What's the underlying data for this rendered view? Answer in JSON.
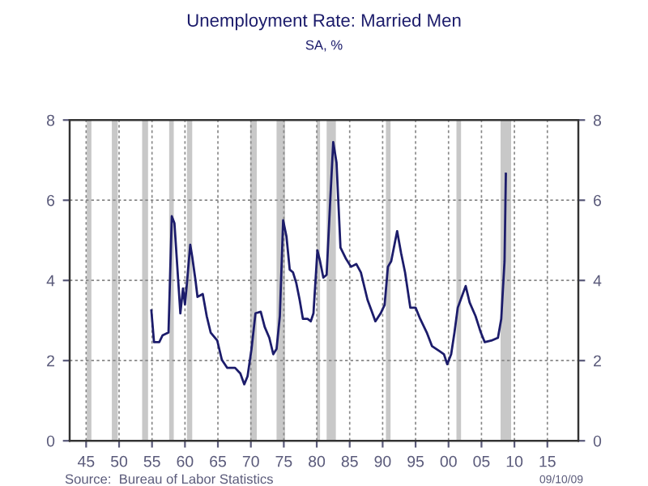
{
  "chart_data": {
    "type": "line",
    "title": "Unemployment Rate: Married Men",
    "subtitle": "SA, %",
    "annotations": [
      "Source:  Bureau of Labor Statistics",
      "09/10/09"
    ],
    "series": [
      {
        "color": "#1c1c6b",
        "x": [
          1954.9,
          1955.3,
          1956.1,
          1956.6,
          1957.5,
          1958.0,
          1958.4,
          1959.0,
          1959.3,
          1959.7,
          1960.0,
          1960.3,
          1960.8,
          1961.1,
          1961.6,
          1961.9,
          1962.7,
          1963.3,
          1963.9,
          1964.9,
          1965.6,
          1966.4,
          1967.6,
          1968.4,
          1969.0,
          1969.5,
          1970.1,
          1970.7,
          1971.5,
          1972.1,
          1972.8,
          1973.4,
          1973.9,
          1974.4,
          1974.9,
          1975.4,
          1975.9,
          1976.4,
          1976.9,
          1977.4,
          1977.9,
          1978.6,
          1979.1,
          1979.5,
          1980.1,
          1980.5,
          1981.0,
          1981.5,
          1982.0,
          1982.5,
          1983.0,
          1983.6,
          1984.4,
          1985.2,
          1986.0,
          1986.7,
          1987.7,
          1988.3,
          1988.9,
          1989.7,
          1990.3,
          1990.8,
          1991.3,
          1992.2,
          1992.8,
          1993.4,
          1994.2,
          1995.0,
          1995.7,
          1996.7,
          1997.5,
          1998.7,
          1999.3,
          1999.8,
          2000.4,
          2000.9,
          2001.4,
          2002.0,
          2002.6,
          2003.2,
          2004.1,
          2004.9,
          2005.5,
          2006.5,
          2007.5,
          2008.0,
          2008.5,
          2008.7
        ],
        "values": [
          3.25,
          2.46,
          2.46,
          2.63,
          2.7,
          5.6,
          5.43,
          3.93,
          3.18,
          3.8,
          3.4,
          3.93,
          4.89,
          4.59,
          4.0,
          3.59,
          3.66,
          3.11,
          2.7,
          2.5,
          2.02,
          1.82,
          1.82,
          1.68,
          1.41,
          1.61,
          2.29,
          3.18,
          3.22,
          2.84,
          2.57,
          2.16,
          2.29,
          3.11,
          5.5,
          5.1,
          4.27,
          4.2,
          3.93,
          3.52,
          3.04,
          3.04,
          2.98,
          3.18,
          4.75,
          4.48,
          4.07,
          4.14,
          5.84,
          7.45,
          6.94,
          4.82,
          4.55,
          4.34,
          4.41,
          4.2,
          3.52,
          3.25,
          2.98,
          3.18,
          3.39,
          4.34,
          4.48,
          5.23,
          4.68,
          4.2,
          3.32,
          3.32,
          3.04,
          2.7,
          2.36,
          2.23,
          2.16,
          1.91,
          2.16,
          2.7,
          3.32,
          3.59,
          3.86,
          3.45,
          3.11,
          2.7,
          2.46,
          2.5,
          2.57,
          3.04,
          4.48,
          6.66
        ]
      }
    ],
    "xlim": [
      1942.5,
      2019.7
    ],
    "xticks": [
      {
        "value": 1945,
        "label": "45"
      },
      {
        "value": 1950,
        "label": "50"
      },
      {
        "value": 1955,
        "label": "55"
      },
      {
        "value": 1960,
        "label": "60"
      },
      {
        "value": 1965,
        "label": "65"
      },
      {
        "value": 1970,
        "label": "70"
      },
      {
        "value": 1975,
        "label": "75"
      },
      {
        "value": 1980,
        "label": "80"
      },
      {
        "value": 1985,
        "label": "85"
      },
      {
        "value": 1990,
        "label": "90"
      },
      {
        "value": 1995,
        "label": "95"
      },
      {
        "value": 2000,
        "label": "00"
      },
      {
        "value": 2005,
        "label": "05"
      },
      {
        "value": 2010,
        "label": "10"
      },
      {
        "value": 2015,
        "label": "15"
      }
    ],
    "ylim": [
      0,
      8
    ],
    "yticks": [
      0,
      2,
      4,
      6,
      8
    ],
    "y2lim": [
      0,
      8
    ],
    "y2ticks": [
      0,
      2,
      4,
      6,
      8
    ],
    "grid": true,
    "line_style": "solid",
    "marker": "none",
    "bands": [
      {
        "axis": "x",
        "from": 1945.1,
        "to": 1945.8,
        "color": "#c8c8c8"
      },
      {
        "axis": "x",
        "from": 1948.9,
        "to": 1949.8,
        "color": "#c8c8c8"
      },
      {
        "axis": "x",
        "from": 1953.5,
        "to": 1954.4,
        "color": "#c8c8c8"
      },
      {
        "axis": "x",
        "from": 1957.6,
        "to": 1958.3,
        "color": "#c8c8c8"
      },
      {
        "axis": "x",
        "from": 1960.3,
        "to": 1961.1,
        "color": "#c8c8c8"
      },
      {
        "axis": "x",
        "from": 1969.9,
        "to": 1970.9,
        "color": "#c8c8c8"
      },
      {
        "axis": "x",
        "from": 1973.9,
        "to": 1975.2,
        "color": "#c8c8c8"
      },
      {
        "axis": "x",
        "from": 1980.0,
        "to": 1980.5,
        "color": "#c8c8c8"
      },
      {
        "axis": "x",
        "from": 1981.5,
        "to": 1982.9,
        "color": "#c8c8c8"
      },
      {
        "axis": "x",
        "from": 1990.5,
        "to": 1991.2,
        "color": "#c8c8c8"
      },
      {
        "axis": "x",
        "from": 2001.2,
        "to": 2001.9,
        "color": "#c8c8c8"
      },
      {
        "axis": "x",
        "from": 2007.9,
        "to": 2009.5,
        "color": "#c8c8c8"
      }
    ]
  }
}
